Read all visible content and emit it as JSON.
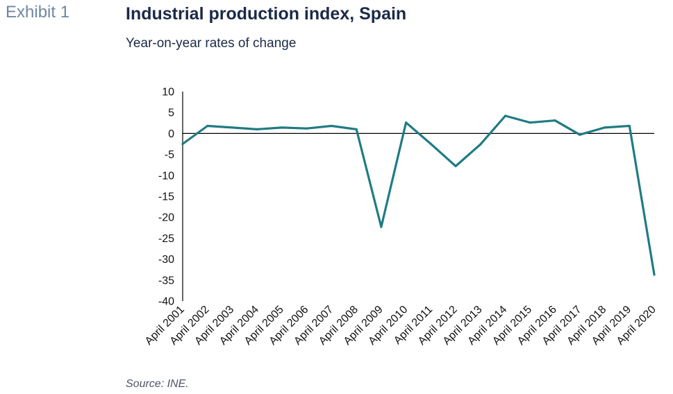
{
  "header": {
    "exhibit": "Exhibit 1",
    "title": "Industrial production index, Spain",
    "subtitle": "Year-on-year rates of change"
  },
  "footer": {
    "source": "Source: INE."
  },
  "colors": {
    "series": "#1f7b84",
    "axis": "#000000",
    "title": "#1b2a47",
    "exhibit": "#6f86a3"
  },
  "chart_data": {
    "type": "line",
    "title": "Industrial production index, Spain",
    "subtitle": "Year-on-year rates of change",
    "categories": [
      "April 2001",
      "April 2002",
      "April 2003",
      "April 2004",
      "April 2005",
      "April 2006",
      "April 2007",
      "April 2008",
      "April 2009",
      "April 2010",
      "April 2011",
      "April 2012",
      "April 2013",
      "April 2014",
      "April 2015",
      "April 2016",
      "April 2017",
      "April 2018",
      "April 2019",
      "April 2020"
    ],
    "series": [
      {
        "values": [
          -2.5,
          1.8,
          1.4,
          1.0,
          1.4,
          1.2,
          1.8,
          1.0,
          -22.3,
          2.6,
          -2.5,
          -7.8,
          -2.6,
          4.2,
          2.6,
          3.1,
          -0.3,
          1.4,
          1.8,
          -33.7
        ]
      }
    ],
    "yticks": [
      10,
      5,
      0,
      -5,
      -10,
      -15,
      -20,
      -25,
      -30,
      -35,
      -40
    ],
    "ylim": [
      -40,
      10
    ],
    "xlabel": "",
    "ylabel": "",
    "grid": false,
    "zero_line": true,
    "legend": "none"
  }
}
